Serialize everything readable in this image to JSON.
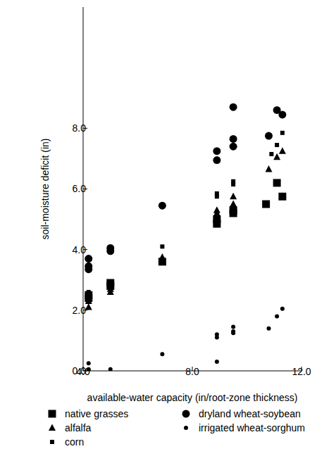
{
  "chart_data": {
    "type": "scatter",
    "x_label": "available-water capacity (in/root-zone thickness)",
    "y_label": "soil-moisture deficit (in)",
    "xlim": [
      4,
      12
    ],
    "xticks": [
      {
        "value": 4,
        "label": "4.0"
      },
      {
        "value": 8,
        "label": "8.0"
      },
      {
        "value": 12,
        "label": "12.0"
      }
    ],
    "ylim": [
      0,
      12
    ],
    "yticks": [
      {
        "value": 0,
        "label": "0.0"
      },
      {
        "value": 2,
        "label": "2.0"
      },
      {
        "value": 4,
        "label": "4.0"
      },
      {
        "value": 6,
        "label": "6.0"
      },
      {
        "value": 8,
        "label": "8.0"
      }
    ],
    "grid": false,
    "legend": "bottom",
    "series": [
      {
        "name": "native grasses",
        "marker": "square",
        "color": "#000000",
        "x": [
          4.2,
          4.2,
          5.0,
          5.0,
          6.9,
          8.9,
          8.9,
          9.5,
          9.5,
          10.7,
          11.1,
          11.3
        ],
        "values": [
          2.4,
          2.5,
          2.8,
          2.9,
          3.6,
          4.85,
          5.0,
          5.2,
          5.3,
          5.5,
          6.2,
          5.75
        ]
      },
      {
        "name": "alfalfa",
        "marker": "triangle",
        "color": "#000000",
        "x": [
          4.2,
          4.2,
          5.0,
          5.0,
          6.9,
          8.9,
          8.9,
          9.5,
          9.5,
          10.8,
          11.1,
          11.3
        ],
        "values": [
          2.1,
          2.3,
          2.6,
          2.7,
          3.75,
          5.2,
          5.3,
          5.5,
          5.75,
          6.65,
          7.05,
          7.25
        ]
      },
      {
        "name": "corn",
        "marker": "small_square",
        "color": "#000000",
        "x": [
          4.2,
          5.0,
          6.9,
          8.9,
          8.9,
          9.5,
          9.5,
          10.9,
          11.1,
          11.3
        ],
        "values": [
          2.6,
          2.95,
          4.1,
          5.75,
          5.85,
          6.15,
          6.25,
          7.15,
          7.45,
          7.85
        ]
      },
      {
        "name": "dryland wheat-soybean",
        "marker": "circle",
        "color": "#000000",
        "x": [
          4.2,
          4.2,
          4.2,
          5.0,
          5.0,
          6.9,
          8.9,
          8.9,
          9.5,
          9.5,
          9.5,
          10.8,
          11.1,
          11.3
        ],
        "values": [
          3.7,
          3.45,
          3.35,
          4.05,
          3.95,
          5.45,
          7.25,
          6.95,
          8.7,
          7.65,
          7.4,
          7.75,
          8.6,
          8.45
        ]
      },
      {
        "name": "irrigated wheat-sorghum",
        "marker": "small_circle",
        "color": "#000000",
        "x": [
          4.2,
          4.2,
          4.2,
          5.0,
          6.9,
          8.9,
          8.9,
          8.9,
          9.5,
          9.5,
          9.5,
          10.8,
          11.1,
          11.3
        ],
        "values": [
          0.25,
          0.05,
          0.02,
          0.05,
          0.55,
          1.2,
          1.1,
          0.3,
          1.45,
          1.3,
          1.25,
          1.4,
          1.8,
          2.05
        ]
      }
    ]
  }
}
